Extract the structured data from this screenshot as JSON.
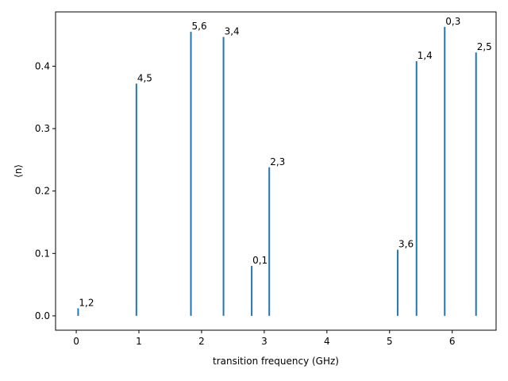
{
  "chart_data": {
    "type": "bar",
    "xlabel": "transition frequency (GHz)",
    "ylabel": "⟨n⟩",
    "xlim": [
      -0.33,
      6.7
    ],
    "ylim": [
      -0.023,
      0.487
    ],
    "xticks": [
      "0",
      "1",
      "2",
      "3",
      "4",
      "5",
      "6"
    ],
    "yticks": [
      "0.0",
      "0.1",
      "0.2",
      "0.3",
      "0.4"
    ],
    "grid": false,
    "color": "#1f77b4",
    "points": [
      {
        "x": 0.03,
        "y": 0.012,
        "label": "1,2"
      },
      {
        "x": 0.96,
        "y": 0.372,
        "label": "4,5"
      },
      {
        "x": 1.83,
        "y": 0.455,
        "label": "5,6"
      },
      {
        "x": 2.35,
        "y": 0.447,
        "label": "3,4"
      },
      {
        "x": 2.8,
        "y": 0.08,
        "label": "0,1"
      },
      {
        "x": 3.08,
        "y": 0.238,
        "label": "2,3"
      },
      {
        "x": 5.13,
        "y": 0.106,
        "label": "3,6"
      },
      {
        "x": 5.43,
        "y": 0.408,
        "label": "1,4"
      },
      {
        "x": 5.88,
        "y": 0.463,
        "label": "0,3"
      },
      {
        "x": 6.38,
        "y": 0.422,
        "label": "2,5"
      }
    ]
  }
}
